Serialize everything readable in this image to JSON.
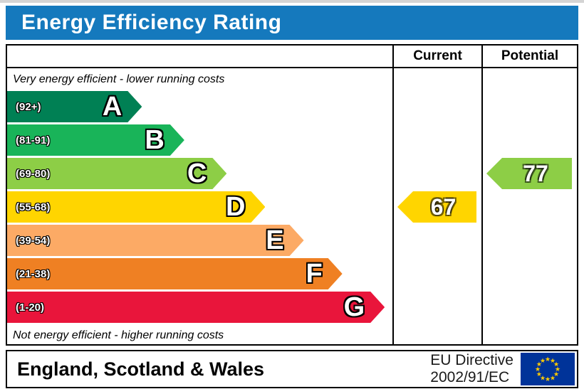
{
  "title": "Energy Efficiency Rating",
  "colors": {
    "title_bg": "#1579bd",
    "title_text": "#ffffff"
  },
  "header": {
    "current": "Current",
    "potential": "Potential"
  },
  "captions": {
    "top": "Very energy efficient - lower running costs",
    "bottom": "Not energy efficient - higher running costs"
  },
  "bands": [
    {
      "letter": "A",
      "range": "(92+)",
      "color": "#008054",
      "width": "35%"
    },
    {
      "letter": "B",
      "range": "(81-91)",
      "color": "#19b459",
      "width": "46%"
    },
    {
      "letter": "C",
      "range": "(69-80)",
      "color": "#8dce46",
      "width": "57%"
    },
    {
      "letter": "D",
      "range": "(55-68)",
      "color": "#ffd500",
      "width": "67%"
    },
    {
      "letter": "E",
      "range": "(39-54)",
      "color": "#fcaa65",
      "width": "77%"
    },
    {
      "letter": "F",
      "range": "(21-38)",
      "color": "#ef8023",
      "width": "87%"
    },
    {
      "letter": "G",
      "range": "(1-20)",
      "color": "#e9153b",
      "width": "98%"
    }
  ],
  "current": {
    "value": "67",
    "band_index": 3,
    "color": "#ffd500"
  },
  "potential": {
    "value": "77",
    "band_index": 2,
    "color": "#8dce46"
  },
  "footer": {
    "region": "England, Scotland & Wales",
    "directive_line1": "EU Directive",
    "directive_line2": "2002/91/EC",
    "flag_bg": "#003399",
    "flag_star": "#ffcc00"
  },
  "chart_data": {
    "type": "bar",
    "title": "Energy Efficiency Rating",
    "categories": [
      "A (92+)",
      "B (81-91)",
      "C (69-80)",
      "D (55-68)",
      "E (39-54)",
      "F (21-38)",
      "G (1-20)"
    ],
    "values": [
      35,
      46,
      57,
      67,
      77,
      87,
      98
    ],
    "band_colors": [
      "#008054",
      "#19b459",
      "#8dce46",
      "#ffd500",
      "#fcaa65",
      "#ef8023",
      "#e9153b"
    ],
    "series": [
      {
        "name": "Current",
        "value": 67,
        "band": "D",
        "color": "#ffd500"
      },
      {
        "name": "Potential",
        "value": 77,
        "band": "C",
        "color": "#8dce46"
      }
    ],
    "top_caption": "Very energy efficient - lower running costs",
    "bottom_caption": "Not energy efficient - higher running costs",
    "region": "England, Scotland & Wales",
    "footnote": "EU Directive 2002/91/EC",
    "value_range": [
      1,
      100
    ]
  }
}
